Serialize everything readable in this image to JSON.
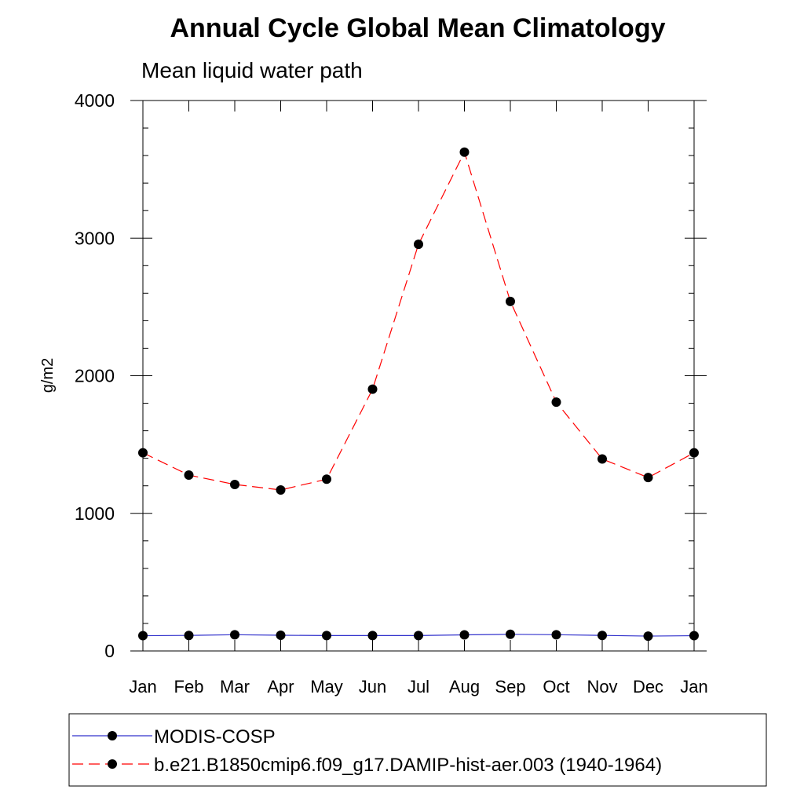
{
  "chart_data": {
    "type": "line",
    "title": "Annual Cycle Global Mean Climatology",
    "subtitle": "Mean liquid water path",
    "xlabel": "",
    "ylabel": "g/m2",
    "ylim": [
      0,
      4000
    ],
    "yticks": [
      "0",
      "1000",
      "2000",
      "3000",
      "4000"
    ],
    "categories": [
      "Jan",
      "Feb",
      "Mar",
      "Apr",
      "May",
      "Jun",
      "Jul",
      "Aug",
      "Sep",
      "Oct",
      "Nov",
      "Dec",
      "Jan"
    ],
    "grid": false,
    "legend_position": "bottom",
    "series": [
      {
        "name": "MODIS-COSP",
        "color": "#3333cc",
        "line_style": "solid",
        "marker": "filled-circle",
        "values": [
          111,
          113,
          118,
          114,
          112,
          112,
          112,
          117,
          121,
          118,
          113,
          108,
          111
        ]
      },
      {
        "name": "b.e21.B1850cmip6.f09_g17.DAMIP-hist-aer.003 (1940-1964)",
        "color": "#ff0000",
        "line_style": "dashed",
        "marker": "filled-circle",
        "values": [
          1440,
          1278,
          1210,
          1170,
          1248,
          1902,
          2955,
          3625,
          2540,
          1808,
          1395,
          1260,
          1440
        ]
      }
    ]
  }
}
